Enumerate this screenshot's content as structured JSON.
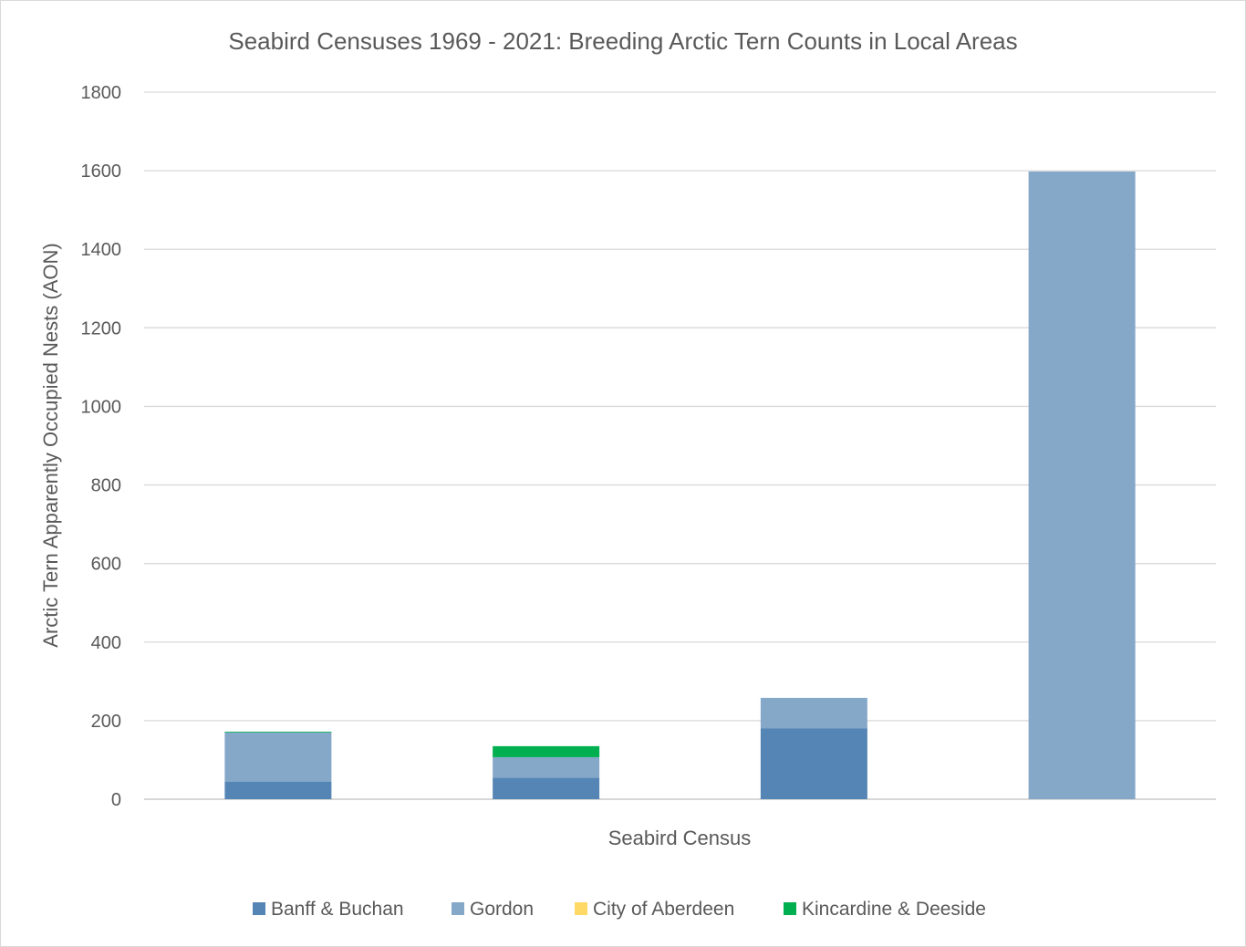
{
  "chart_data": {
    "type": "bar",
    "stacked": true,
    "title": "Seabird Censuses 1969 - 2021: Breeding Arctic Tern Counts in Local Areas",
    "xlabel": "Seabird Census",
    "ylabel": "Arctic Tern Apparently Occupied Nests (AON)",
    "ylim": [
      0,
      1800
    ],
    "yticks": [
      "0",
      "200",
      "400",
      "600",
      "800",
      "1000",
      "1200",
      "1400",
      "1600",
      "1800"
    ],
    "categories": [
      "",
      "",
      "",
      ""
    ],
    "grid": true,
    "legend_position": "bottom",
    "series": [
      {
        "name": "Banff & Buchan",
        "color": "#5585b5",
        "values": [
          45,
          55,
          180,
          0
        ]
      },
      {
        "name": "Gordon",
        "color": "#85a8c9",
        "values": [
          125,
          52,
          78,
          1598
        ]
      },
      {
        "name": "City of Aberdeen",
        "color": "#ffd966",
        "values": [
          0,
          0,
          0,
          0
        ]
      },
      {
        "name": "Kincardine & Deeside",
        "color": "#00b050",
        "values": [
          2,
          28,
          0,
          0
        ]
      }
    ]
  }
}
